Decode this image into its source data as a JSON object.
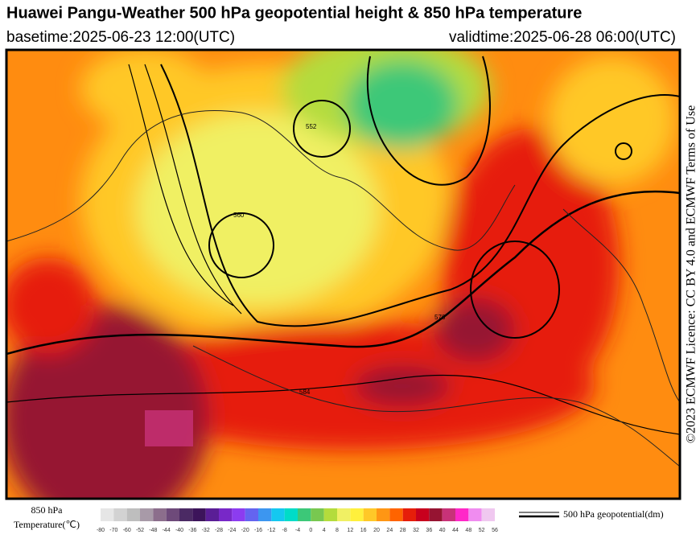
{
  "header": {
    "title": "Huawei Pangu-Weather 500 hPa geopotential height & 850 hPa temperature",
    "basetime": "basetime:2025-06-23 12:00(UTC)",
    "validtime": "validtime:2025-06-28 06:00(UTC)"
  },
  "side_text": "©2023 ECMWF Licence: CC BY 4.0 and ECMWF Terms of Use",
  "legend": {
    "variable": "850 hPa",
    "variable_unit": "Temperature(℃)",
    "ticks": [
      -80,
      -70,
      -60,
      -52,
      -48,
      -44,
      -40,
      -36,
      -32,
      -28,
      -24,
      -20,
      -16,
      -12,
      -8,
      -4,
      0,
      4,
      8,
      12,
      16,
      20,
      24,
      28,
      32,
      36,
      40,
      44,
      48,
      52,
      56
    ],
    "colors": [
      "#e6e6e6",
      "#d2d2d2",
      "#bebebe",
      "#a89aa8",
      "#8c6e8c",
      "#6e4a7a",
      "#4b2a64",
      "#3c145a",
      "#5a1e96",
      "#7828c8",
      "#8c3cf0",
      "#6464f0",
      "#3c96f0",
      "#14c8f0",
      "#00dcc8",
      "#3cc878",
      "#78c850",
      "#b4dc3c",
      "#f0f064",
      "#fff03c",
      "#ffc828",
      "#ff9614",
      "#ff6400",
      "#e61e0a",
      "#c8001e",
      "#961432",
      "#c83278",
      "#ff28c8",
      "#f08cf0",
      "#f0c8f0"
    ],
    "contour_label": "500 hPa geopotential(dm)"
  },
  "map": {
    "contour_labels": [
      "584",
      "576",
      "560",
      "552"
    ]
  }
}
